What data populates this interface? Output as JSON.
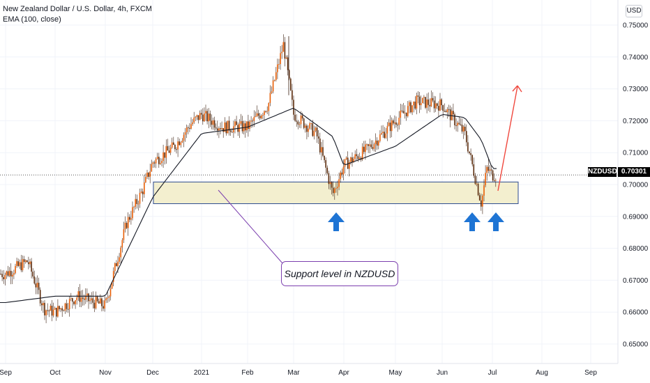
{
  "legend": {
    "title": "New Zealand Dollar / U.S. Dollar, 4h, FXCM",
    "indicator": "EMA (100, close)"
  },
  "currency_button": "USD",
  "price_badge": {
    "symbol": "NZDUSD",
    "price": "0.70301"
  },
  "annotation": {
    "text": "Support level in NZDUSD"
  },
  "colors": {
    "candles": "#e85d04",
    "wick": "#3a1d0e",
    "ema": "#131722",
    "support_zone_fill": "#f3efcf",
    "support_zone_border": "#2c4a8f",
    "arrow_up": "#1e74d4",
    "target_arrow": "#f0483e",
    "callout_border": "#7b3fae"
  },
  "icons": [
    "arrow-up-icon",
    "arrow-up-icon",
    "arrow-up-icon"
  ],
  "chart_data": {
    "type": "candlestick",
    "symbol": "NZDUSD",
    "timeframe": "4h",
    "ylim": [
      0.642,
      0.753
    ],
    "y_ticks": [
      "0.75000",
      "0.74000",
      "0.73000",
      "0.72000",
      "0.71000",
      "0.70000",
      "0.69000",
      "0.68000",
      "0.67000",
      "0.66000",
      "0.65000"
    ],
    "x_ticks": [
      "Sep",
      "Oct",
      "Nov",
      "Dec",
      "2021",
      "Feb",
      "Mar",
      "Apr",
      "May",
      "Jun",
      "Jul",
      "Aug",
      "Sep"
    ],
    "current_price": 0.70301,
    "support_zone": [
      0.694,
      0.7008
    ],
    "price_path": [
      [
        "Sep",
        0.672
      ],
      [
        "mid-Sep",
        0.676
      ],
      [
        "late-Sep",
        0.661
      ],
      [
        "Oct",
        0.66
      ],
      [
        "mid-Oct",
        0.665
      ],
      [
        "late-Oct",
        0.663
      ],
      [
        "Nov",
        0.662
      ],
      [
        "mid-Nov",
        0.688
      ],
      [
        "late-Nov",
        0.698
      ],
      [
        "Dec",
        0.707
      ],
      [
        "mid-Dec",
        0.712
      ],
      [
        "late-Dec",
        0.719
      ],
      [
        "2021",
        0.722
      ],
      [
        "mid-Jan",
        0.718
      ],
      [
        "Feb",
        0.718
      ],
      [
        "mid-Feb",
        0.725
      ],
      [
        "late-Feb",
        0.744
      ],
      [
        "Mar",
        0.722
      ],
      [
        "mid-Mar",
        0.716
      ],
      [
        "late-Mar",
        0.697
      ],
      [
        "Apr",
        0.706
      ],
      [
        "mid-Apr",
        0.711
      ],
      [
        "May",
        0.72
      ],
      [
        "mid-May",
        0.726
      ],
      [
        "Jun",
        0.725
      ],
      [
        "mid-Jun",
        0.716
      ],
      [
        "late-Jun",
        0.694
      ],
      [
        "early-Jul",
        0.705
      ],
      [
        "Jul",
        0.703
      ]
    ],
    "ema_path": [
      [
        "Sep",
        0.663
      ],
      [
        "Oct",
        0.665
      ],
      [
        "Nov",
        0.665
      ],
      [
        "Dec",
        0.696
      ],
      [
        "2021",
        0.716
      ],
      [
        "Feb",
        0.718
      ],
      [
        "Mar",
        0.724
      ],
      [
        "late-Mar",
        0.715
      ],
      [
        "Apr",
        0.706
      ],
      [
        "May",
        0.712
      ],
      [
        "Jun",
        0.722
      ],
      [
        "mid-Jun",
        0.721
      ],
      [
        "late-Jun",
        0.714
      ],
      [
        "Jul",
        0.705
      ]
    ]
  }
}
